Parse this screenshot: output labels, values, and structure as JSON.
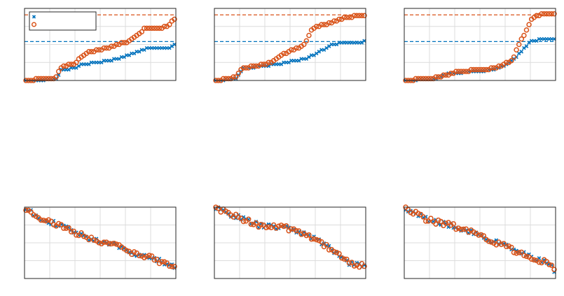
{
  "chart_data": [
    {
      "type": "scatter",
      "grid": true,
      "legend": {
        "placement": "top-left",
        "entries": [
          "",
          ""
        ]
      },
      "xlim": [
        0,
        1
      ],
      "ylim": [
        0,
        1
      ],
      "reference_lines": [
        {
          "y": 0.91,
          "color": "#d95319",
          "style": "dashed"
        },
        {
          "y": 0.54,
          "color": "#0072bd",
          "style": "dashed"
        }
      ],
      "series": [
        {
          "marker": "x",
          "color": "#0072bd",
          "shape": "blue_a"
        },
        {
          "marker": "o",
          "color": "#d95319",
          "shape": "orange_a"
        }
      ]
    },
    {
      "type": "scatter",
      "grid": true,
      "xlim": [
        0,
        1
      ],
      "ylim": [
        0,
        1
      ],
      "reference_lines": [
        {
          "y": 0.91,
          "color": "#d95319",
          "style": "dashed"
        },
        {
          "y": 0.54,
          "color": "#0072bd",
          "style": "dashed"
        }
      ],
      "series": [
        {
          "marker": "x",
          "color": "#0072bd",
          "shape": "blue_b"
        },
        {
          "marker": "o",
          "color": "#d95319",
          "shape": "orange_b"
        }
      ]
    },
    {
      "type": "scatter",
      "grid": true,
      "xlim": [
        0,
        1
      ],
      "ylim": [
        0,
        1
      ],
      "reference_lines": [
        {
          "y": 0.91,
          "color": "#d95319",
          "style": "dashed"
        },
        {
          "y": 0.54,
          "color": "#0072bd",
          "style": "dashed"
        }
      ],
      "series": [
        {
          "marker": "x",
          "color": "#0072bd",
          "shape": "blue_c"
        },
        {
          "marker": "o",
          "color": "#d95319",
          "shape": "orange_c"
        }
      ]
    },
    {
      "type": "scatter",
      "grid": true,
      "xlim": [
        0,
        1
      ],
      "ylim": [
        0,
        1
      ],
      "series": [
        {
          "marker": "x",
          "color": "#0072bd",
          "shape": "decline_a"
        },
        {
          "marker": "o",
          "color": "#d95319",
          "shape": "decline_a"
        }
      ]
    },
    {
      "type": "scatter",
      "grid": true,
      "xlim": [
        0,
        1
      ],
      "ylim": [
        0,
        1
      ],
      "series": [
        {
          "marker": "x",
          "color": "#0072bd",
          "shape": "decline_b"
        },
        {
          "marker": "o",
          "color": "#d95319",
          "shape": "decline_b"
        }
      ]
    },
    {
      "type": "scatter",
      "grid": true,
      "xlim": [
        0,
        1
      ],
      "ylim": [
        0,
        1
      ],
      "series": [
        {
          "marker": "x",
          "color": "#0072bd",
          "shape": "decline_c"
        },
        {
          "marker": "o",
          "color": "#d95319",
          "shape": "decline_c"
        }
      ]
    }
  ]
}
